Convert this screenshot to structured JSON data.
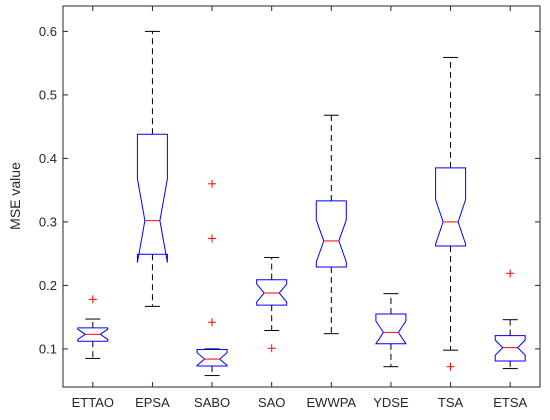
{
  "chart_data": {
    "type": "boxplot",
    "notched": true,
    "title": "",
    "xlabel": "",
    "ylabel": "MSE value",
    "ylim": [
      0.04,
      0.64
    ],
    "yticks": [
      0.1,
      0.2,
      0.3,
      0.4,
      0.5,
      0.6
    ],
    "ytick_labels": [
      "0.1",
      "0.2",
      "0.3",
      "0.4",
      "0.5",
      "0.6"
    ],
    "grid": false,
    "legend": "none",
    "colors": {
      "box": "#0000ff",
      "median": "#ff0000",
      "whisker": "#000000",
      "outlier": "#ff0000",
      "axis": "#262626"
    },
    "categories": [
      "ETTAO",
      "EPSA",
      "SABO",
      "SAO",
      "EWWPA",
      "YDSE",
      "TSA",
      "ETSA"
    ],
    "boxes": [
      {
        "whisker_low": 0.085,
        "q1": 0.112,
        "median": 0.123,
        "q3": 0.133,
        "whisker_high": 0.147,
        "notch_low": 0.115,
        "notch_high": 0.131,
        "outliers": [
          0.178
        ]
      },
      {
        "whisker_low": 0.167,
        "q1": 0.249,
        "median": 0.302,
        "q3": 0.438,
        "whisker_high": 0.6,
        "notch_low": 0.236,
        "notch_high": 0.368,
        "outliers": []
      },
      {
        "whisker_low": 0.058,
        "q1": 0.073,
        "median": 0.084,
        "q3": 0.099,
        "whisker_high": 0.1,
        "notch_low": 0.074,
        "notch_high": 0.094,
        "outliers": [
          0.142,
          0.274,
          0.36
        ]
      },
      {
        "whisker_low": 0.129,
        "q1": 0.169,
        "median": 0.188,
        "q3": 0.209,
        "whisker_high": 0.244,
        "notch_low": 0.174,
        "notch_high": 0.202,
        "outliers": [
          0.101
        ]
      },
      {
        "whisker_low": 0.124,
        "q1": 0.229,
        "median": 0.27,
        "q3": 0.333,
        "whisker_high": 0.468,
        "notch_low": 0.237,
        "notch_high": 0.303,
        "outliers": []
      },
      {
        "whisker_low": 0.072,
        "q1": 0.108,
        "median": 0.126,
        "q3": 0.155,
        "whisker_high": 0.187,
        "notch_low": 0.108,
        "notch_high": 0.144,
        "outliers": []
      },
      {
        "whisker_low": 0.098,
        "q1": 0.262,
        "median": 0.3,
        "q3": 0.385,
        "whisker_high": 0.559,
        "notch_low": 0.265,
        "notch_high": 0.335,
        "outliers": [
          0.072
        ]
      },
      {
        "whisker_low": 0.069,
        "q1": 0.081,
        "median": 0.102,
        "q3": 0.121,
        "whisker_high": 0.146,
        "notch_low": 0.09,
        "notch_high": 0.114,
        "outliers": [
          0.219
        ]
      }
    ]
  }
}
